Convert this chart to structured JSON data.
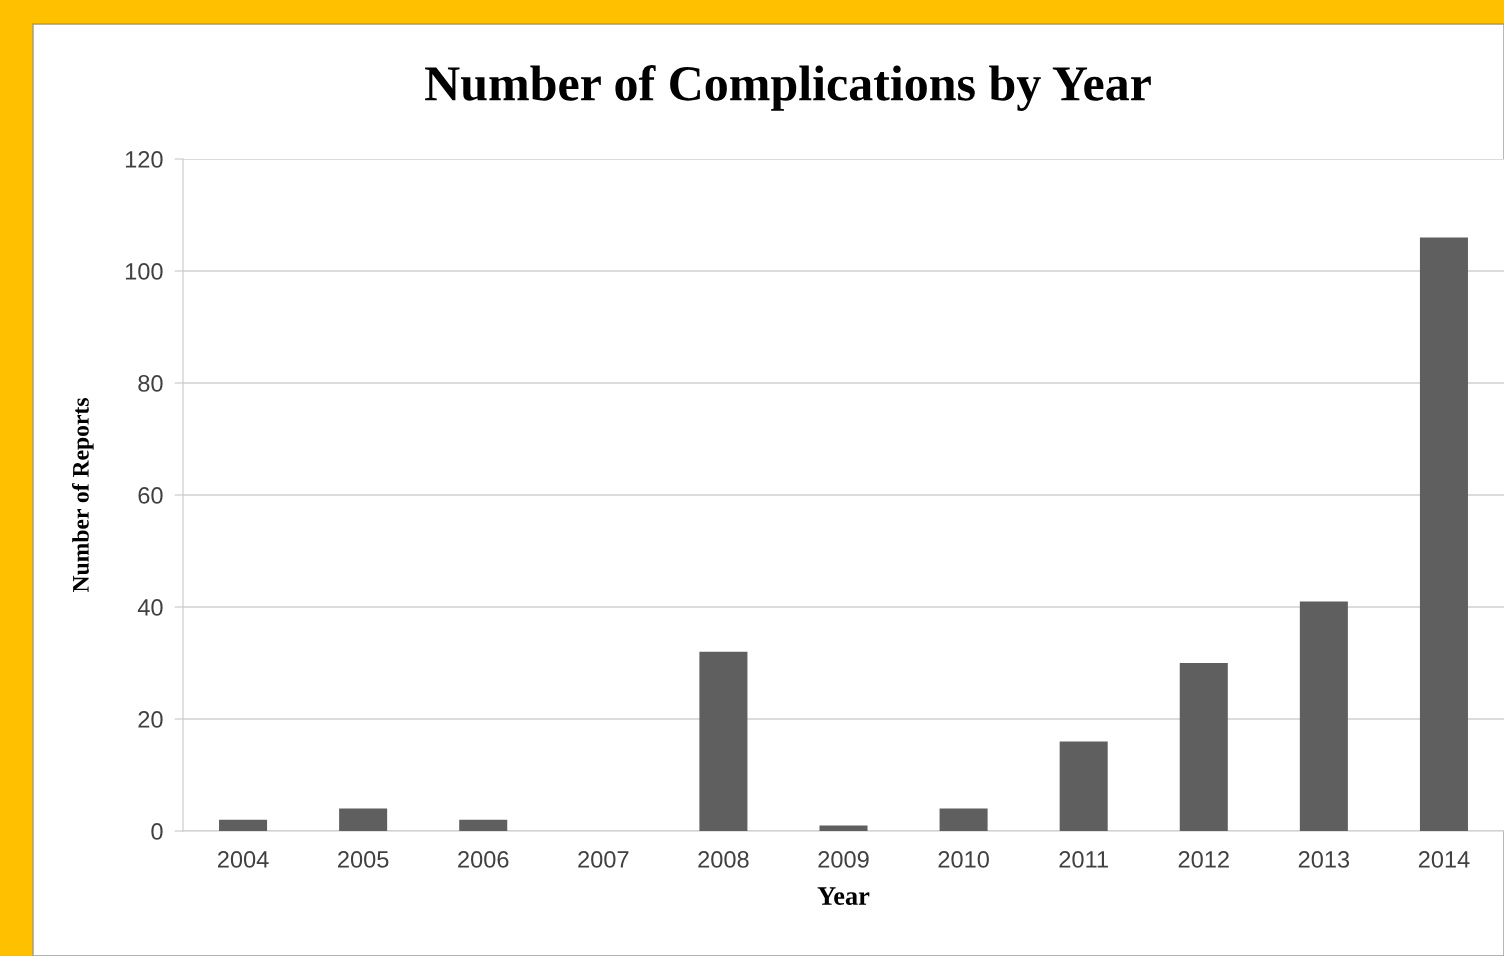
{
  "chart_data": {
    "type": "bar",
    "title": "Number of Complications by Year",
    "xlabel": "Year",
    "ylabel": "Number of Reports",
    "categories": [
      "2004",
      "2005",
      "2006",
      "2007",
      "2008",
      "2009",
      "2010",
      "2011",
      "2012",
      "2013",
      "2014"
    ],
    "values": [
      2,
      4,
      2,
      0,
      32,
      1,
      4,
      16,
      30,
      41,
      106
    ],
    "color": "#5f5f5f",
    "ylim": [
      0,
      120
    ],
    "yticks": [
      0,
      20,
      40,
      60,
      80,
      100,
      120
    ],
    "grid": "y",
    "legend": false
  }
}
